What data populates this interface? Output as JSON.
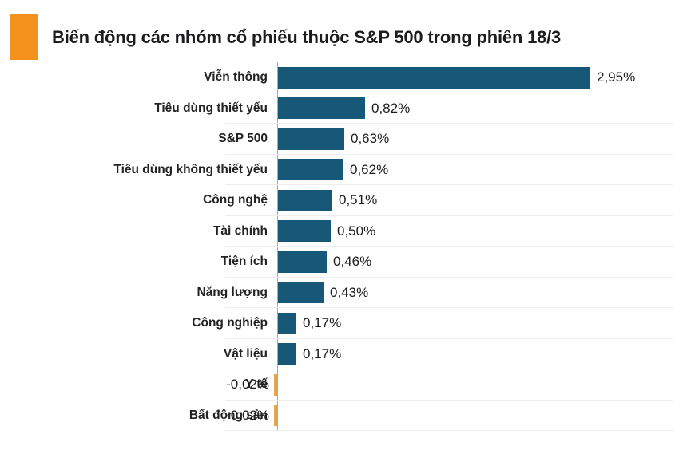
{
  "header": {
    "title": "Biến động các nhóm cổ phiếu thuộc S&P 500 trong phiên 18/3",
    "accent_color": "#F5921E"
  },
  "chart_data": {
    "type": "bar",
    "orientation": "horizontal",
    "title": "Biến động các nhóm cổ phiếu thuộc S&P 500 trong phiên 18/3",
    "categories": [
      "Viễn thông",
      "Tiêu dùng thiết yếu",
      "S&P 500",
      "Tiêu dùng không thiết yếu",
      "Công nghệ",
      "Tài chính",
      "Tiện ích",
      "Năng lượng",
      "Công nghiệp",
      "Vật liệu",
      "Y tế",
      "Bất động sản"
    ],
    "values": [
      2.95,
      0.82,
      0.63,
      0.62,
      0.51,
      0.5,
      0.46,
      0.43,
      0.17,
      0.17,
      -0.02,
      -0.02
    ],
    "value_labels": [
      "2,95%",
      "0,82%",
      "0,63%",
      "0,62%",
      "0,51%",
      "0,50%",
      "0,46%",
      "0,43%",
      "0,17%",
      "0,17%",
      "-0,02%",
      "-0,02%"
    ],
    "unit": "%",
    "decimal_separator": ",",
    "positive_bar_color": "#175777",
    "negative_bar_color": "#E9A24E",
    "gridline_color": "#EDEDED",
    "baseline_color": "#9FADB4",
    "xlim": [
      -0.1,
      3.7
    ],
    "grid": "horizontal row separators",
    "legend": "none",
    "xlabel": "",
    "ylabel": ""
  }
}
